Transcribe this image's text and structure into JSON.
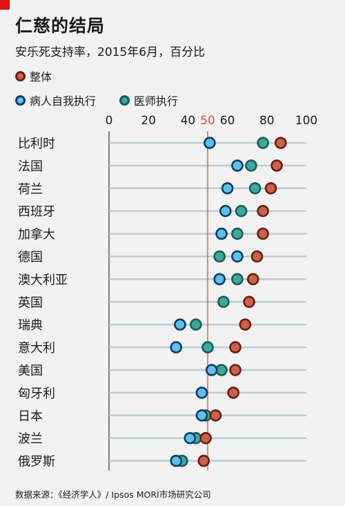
{
  "header": {
    "title": "仁慈的结局",
    "subtitle": "安乐死支持率，2015年6月，百分比"
  },
  "source": "数据来源：《经济学人》/ Ipsos MORI市场研究公司",
  "colors": {
    "overall": "#c8634d",
    "overall_border": "#6d1a0c",
    "patient": "#5ec0e8",
    "patient_border": "#0a3a66",
    "doctor": "#3fa89c",
    "doctor_border": "#155e57",
    "reference_line": "#e04a3a",
    "grid": "#b8cbd8"
  },
  "chart_data": {
    "type": "scatter",
    "orientation": "horizontal-dot-plot",
    "xlim": [
      0,
      100
    ],
    "x_ticks": [
      "0",
      "20",
      "40",
      "50",
      "60",
      "80",
      "100"
    ],
    "x_tick_values": [
      0,
      20,
      40,
      50,
      60,
      80,
      100
    ],
    "highlight_tick": "50",
    "reference_x": 50,
    "legend_placement": "top-left",
    "categories": [
      "比利时",
      "法国",
      "荷兰",
      "西班牙",
      "加拿大",
      "德国",
      "澳大利亚",
      "英国",
      "瑞典",
      "意大利",
      "美国",
      "匈牙利",
      "日本",
      "波兰",
      "俄罗斯"
    ],
    "series": [
      {
        "key": "overall",
        "name": "整体",
        "values": [
          87,
          85,
          82,
          78,
          78,
          75,
          73,
          71,
          69,
          64,
          64,
          63,
          54,
          49,
          48
        ]
      },
      {
        "key": "patient",
        "name": "病人自我执行",
        "values": [
          51,
          65,
          60,
          59,
          57,
          65,
          56,
          null,
          36,
          34,
          52,
          47,
          47,
          41,
          34
        ]
      },
      {
        "key": "doctor",
        "name": "医师执行",
        "values": [
          78,
          72,
          74,
          67,
          65,
          56,
          65,
          58,
          44,
          50,
          57,
          null,
          49,
          44,
          37
        ]
      }
    ]
  }
}
